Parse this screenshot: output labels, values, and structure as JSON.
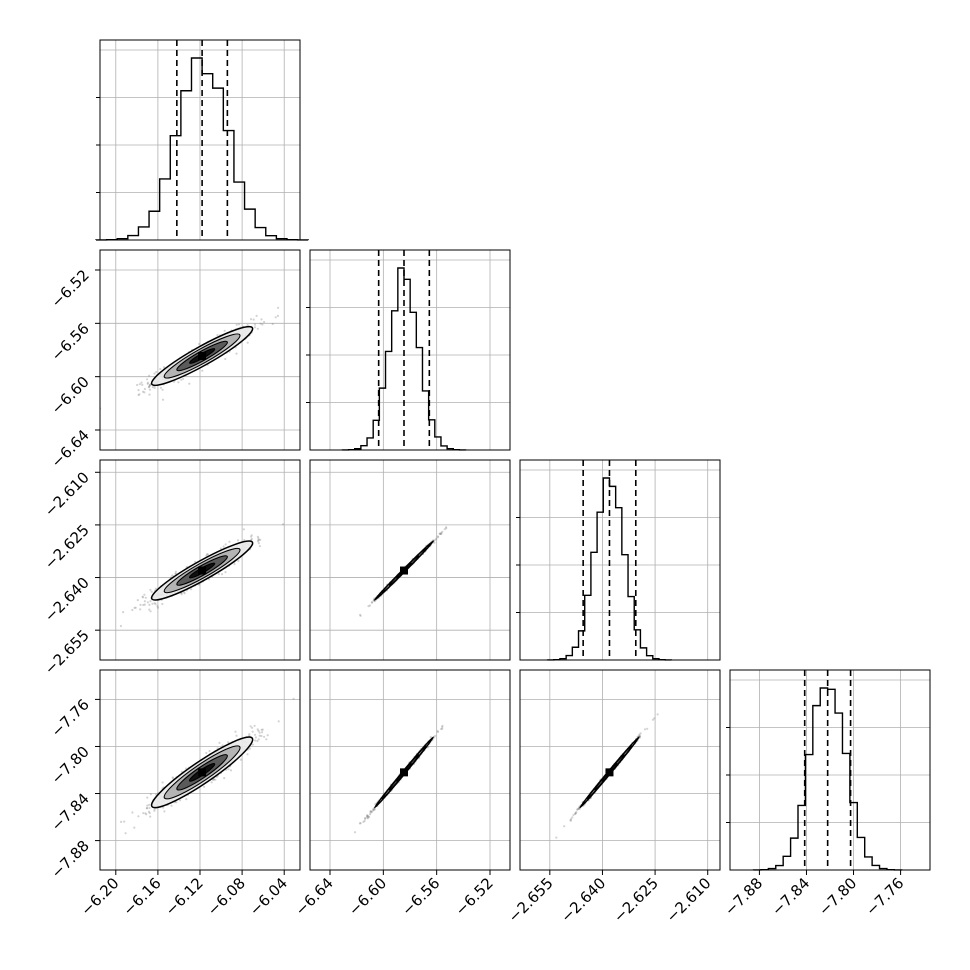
{
  "chart_data": {
    "type": "corner",
    "parameters": [
      {
        "range": [
          -6.215,
          -6.025
        ],
        "ticks": [
          -6.2,
          -6.16,
          -6.12,
          -6.08,
          -6.04
        ],
        "tick_labels": [
          "−6.20",
          "−6.16",
          "−6.12",
          "−6.08",
          "−6.04"
        ],
        "mean": -6.118,
        "sd": 0.024,
        "quantiles": [
          -6.142,
          -6.118,
          -6.094
        ]
      },
      {
        "range": [
          -6.655,
          -6.505
        ],
        "ticks": [
          -6.64,
          -6.6,
          -6.56,
          -6.52
        ],
        "tick_labels": [
          "−6.64",
          "−6.60",
          "−6.56",
          "−6.52"
        ],
        "mean": -6.5845,
        "sd": 0.011,
        "quantiles": [
          -6.6035,
          -6.5845,
          -6.5655
        ]
      },
      {
        "range": [
          -2.6635,
          -2.6065
        ],
        "ticks": [
          -2.655,
          -2.64,
          -2.625,
          -2.61
        ],
        "tick_labels": [
          "−2.655",
          "−2.640",
          "−2.625",
          "−2.610"
        ],
        "mean": -2.638,
        "sd": 0.0042,
        "quantiles": [
          -2.6455,
          -2.638,
          -2.6305
        ]
      },
      {
        "range": [
          -7.905,
          -7.735
        ],
        "ticks": [
          -7.88,
          -7.84,
          -7.8,
          -7.76
        ],
        "tick_labels": [
          "−7.88",
          "−7.84",
          "−7.80",
          "−7.76"
        ],
        "mean": -7.822,
        "sd": 0.015,
        "quantiles": [
          -7.8415,
          -7.822,
          -7.8025
        ]
      }
    ],
    "correlations": [
      {
        "row": 1,
        "col": 0,
        "rho": 0.93
      },
      {
        "row": 2,
        "col": 0,
        "rho": 0.93
      },
      {
        "row": 2,
        "col": 1,
        "rho": 0.998
      },
      {
        "row": 3,
        "col": 0,
        "rho": 0.93
      },
      {
        "row": 3,
        "col": 1,
        "rho": 0.998
      },
      {
        "row": 3,
        "col": 2,
        "rho": 0.998
      }
    ],
    "histogram_bins": 20,
    "contour_levels_sigma": [
      0.5,
      1.0,
      1.5,
      2.0
    ],
    "grid": true,
    "colors": {
      "hist_line": "#000000",
      "quantile_line": "#000000",
      "grid": "#b0b0b0",
      "points": "#808080",
      "contour_line": "#000000",
      "contour_fills": [
        "#ffffff",
        "#eaeaea",
        "#b4b4b4",
        "#5a5a5a",
        "#111111"
      ]
    }
  }
}
